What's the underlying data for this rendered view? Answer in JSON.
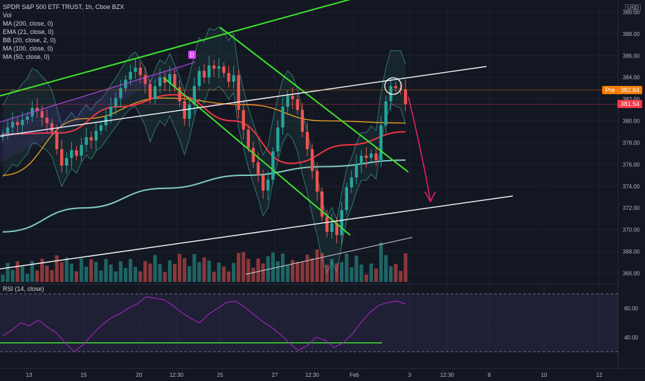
{
  "legend": {
    "title": "SPDR S&P 500 ETF TRUST, 1h, Cboe BZX",
    "lines": [
      "Vol",
      "MA (200, close, 0)",
      "EMA (21, close, 0)",
      "BB (20, close, 2, 0)",
      "MA (100, close, 0)",
      "MA (50, close, 0)"
    ]
  },
  "rsi_label": "RSI (14, close)",
  "currency": "USD",
  "badges": {
    "pre": "Pre · 382.84",
    "last": "381.54"
  },
  "annotation_marker": "D",
  "colors": {
    "background": "#131722",
    "up": "#26a69a",
    "down": "#ef5350",
    "ema": "#f23645",
    "ma50": "#f5a623",
    "ma100": "#80cbc4",
    "bb": "#3d8f86",
    "channel_green": "#3ee52e",
    "white_line": "#ffffff",
    "rsi": "#9c27b0",
    "prediction_arrow": "#e91e63"
  },
  "chart_data": [
    {
      "type": "candlestick",
      "title": "SPDR S&P 500 ETF TRUST, 1h, Cboe BZX",
      "y_axis_ticks": [
        366,
        368,
        370,
        372,
        374,
        376,
        378,
        380,
        382,
        384,
        386,
        388,
        390
      ],
      "x_axis_ticks": [
        "13",
        "15",
        "20",
        "12:30",
        "25",
        "27",
        "12:30",
        "Feb",
        "3",
        "12:30",
        "8",
        "10",
        "12"
      ],
      "ylim": [
        365.2,
        390.6
      ],
      "close_series": [
        378.8,
        379.4,
        379.9,
        379.6,
        380.1,
        380.4,
        381.2,
        380.9,
        380.3,
        379.8,
        379.0,
        377.4,
        375.9,
        376.6,
        377.3,
        376.8,
        377.8,
        378.5,
        378.2,
        379.1,
        379.6,
        380.4,
        381.3,
        382.1,
        383.0,
        383.8,
        384.5,
        384.9,
        384.2,
        383.4,
        382.0,
        383.2,
        384.0,
        383.5,
        384.3,
        383.1,
        381.8,
        380.2,
        381.5,
        383.2,
        384.6,
        384.0,
        385.1,
        384.8,
        385.0,
        384.4,
        383.6,
        384.2,
        381.0,
        379.2,
        377.5,
        376.2,
        375.0,
        373.6,
        374.6,
        377.2,
        379.4,
        381.3,
        382.3,
        382.0,
        381.0,
        379.0,
        377.4,
        375.4,
        373.5,
        371.2,
        369.8,
        370.6,
        369.5,
        371.8,
        373.9,
        374.8,
        376.0,
        376.8,
        376.6,
        377.0,
        376.4,
        379.6,
        381.8,
        383.2,
        383.0,
        382.9,
        381.54
      ],
      "series": [
        {
          "name": "MA (50, close, 0)",
          "values": [
            375.0,
            380.2,
            382.1,
            381.5,
            380.0,
            379.8
          ]
        },
        {
          "name": "MA (100, close, 0)",
          "values": [
            369.8,
            372.0,
            373.8,
            375.0,
            375.8,
            376.4
          ]
        },
        {
          "name": "EMA (21, close, 0)",
          "values": [
            378.8,
            378.9,
            381.3,
            382.4,
            380.0,
            376.1,
            377.8,
            379.0
          ]
        }
      ],
      "annotations": {
        "pre_market_price": 382.84,
        "last_price": 381.54,
        "target_projection": 372.2
      }
    },
    {
      "type": "line",
      "title": "RSI (14, close)",
      "y_axis_ticks": [
        40,
        60
      ],
      "ylim": [
        28,
        72
      ],
      "levels": [
        70,
        30
      ],
      "values": [
        41,
        45,
        50,
        48,
        52,
        47,
        43,
        36,
        30,
        35,
        42,
        48,
        53,
        56,
        60,
        63,
        68,
        67,
        66,
        62,
        57,
        53,
        50,
        56,
        60,
        64,
        65,
        61,
        56,
        51,
        47,
        42,
        36,
        31,
        34,
        40,
        38,
        33,
        36,
        42,
        50,
        57,
        62,
        64,
        65,
        63
      ]
    }
  ]
}
